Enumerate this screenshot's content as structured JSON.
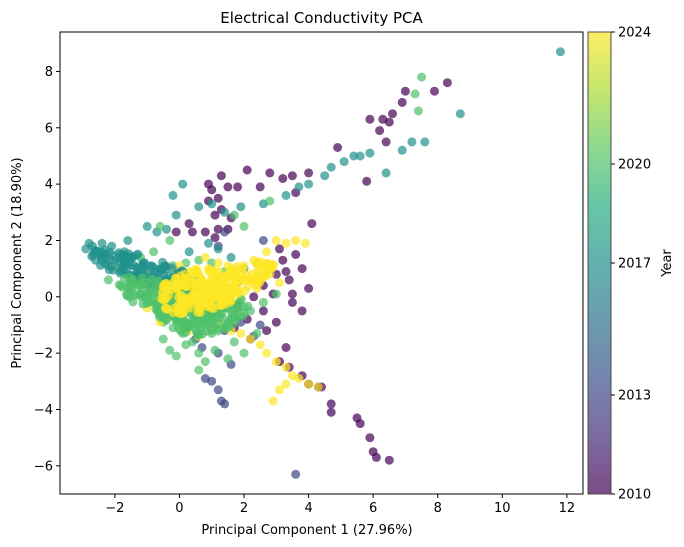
{
  "chart_data": {
    "type": "scatter",
    "title": "Electrical Conductivity PCA",
    "xlabel": "Principal Component 1 (27.96%)",
    "ylabel": "Principal Component 2 (18.90%)",
    "xlim": [
      -3.7,
      12.5
    ],
    "ylim": [
      -7.0,
      9.4
    ],
    "xticks": [
      -2,
      0,
      2,
      4,
      6,
      8,
      10,
      12
    ],
    "yticks": [
      -6,
      -4,
      -2,
      0,
      2,
      4,
      6,
      8
    ],
    "grid": false,
    "colorbar": {
      "label": "Year",
      "ticks": [
        2010,
        2013,
        2017,
        2020,
        2024
      ],
      "range": [
        2010,
        2024
      ],
      "colormap": "viridis"
    },
    "series": [
      {
        "year": 2010,
        "points": [
          [
            8.3,
            7.6
          ],
          [
            7.9,
            7.3
          ],
          [
            7.0,
            7.3
          ],
          [
            6.9,
            6.9
          ],
          [
            6.6,
            6.5
          ],
          [
            6.3,
            6.3
          ],
          [
            6.5,
            6.2
          ],
          [
            6.2,
            5.9
          ],
          [
            6.4,
            5.5
          ],
          [
            5.9,
            6.3
          ],
          [
            4.9,
            5.3
          ],
          [
            5.8,
            4.1
          ],
          [
            4.0,
            4.4
          ],
          [
            3.6,
            3.7
          ],
          [
            3.5,
            4.3
          ],
          [
            3.2,
            4.2
          ],
          [
            2.8,
            4.4
          ],
          [
            2.5,
            3.9
          ],
          [
            2.1,
            4.5
          ],
          [
            1.8,
            3.9
          ],
          [
            1.3,
            4.3
          ],
          [
            0.9,
            4.0
          ],
          [
            1.0,
            3.8
          ],
          [
            1.5,
            3.9
          ],
          [
            1.2,
            3.5
          ],
          [
            0.9,
            3.4
          ],
          [
            1.3,
            3.1
          ],
          [
            1.1,
            2.9
          ],
          [
            1.6,
            2.8
          ],
          [
            1.2,
            2.4
          ],
          [
            1.1,
            2.1
          ],
          [
            0.8,
            2.3
          ],
          [
            1.5,
            2.4
          ],
          [
            0.3,
            2.6
          ],
          [
            -0.1,
            2.3
          ],
          [
            0.4,
            2.3
          ],
          [
            4.1,
            2.6
          ],
          [
            3.1,
            1.7
          ],
          [
            3.6,
            1.5
          ],
          [
            3.3,
            0.9
          ],
          [
            3.8,
            1.0
          ],
          [
            3.0,
            0.8
          ],
          [
            2.8,
            1.1
          ],
          [
            3.4,
            0.6
          ],
          [
            2.4,
            1.2
          ],
          [
            2.6,
            0.4
          ],
          [
            2.9,
            0.1
          ],
          [
            3.5,
            -0.2
          ],
          [
            3.8,
            -0.5
          ],
          [
            2.3,
            0.0
          ],
          [
            2.6,
            -0.5
          ],
          [
            3.0,
            -0.9
          ],
          [
            2.7,
            -1.2
          ],
          [
            3.3,
            -1.8
          ],
          [
            3.1,
            -2.3
          ],
          [
            3.4,
            -2.5
          ],
          [
            3.8,
            -2.8
          ],
          [
            4.0,
            -3.1
          ],
          [
            4.4,
            -3.2
          ],
          [
            4.7,
            -3.8
          ],
          [
            4.7,
            -4.1
          ],
          [
            5.5,
            -4.3
          ],
          [
            5.6,
            -4.5
          ],
          [
            5.9,
            -5.0
          ],
          [
            6.0,
            -5.5
          ],
          [
            6.1,
            -5.7
          ],
          [
            6.5,
            -5.8
          ],
          [
            4.3,
            -3.2
          ],
          [
            2.1,
            -0.8
          ],
          [
            1.8,
            -0.3
          ],
          [
            1.5,
            0.3
          ],
          [
            1.2,
            0.1
          ],
          [
            0.9,
            0.4
          ],
          [
            1.7,
            -1.1
          ],
          [
            2.2,
            -1.5
          ],
          [
            3.5,
            0.1
          ],
          [
            4.0,
            0.3
          ],
          [
            3.2,
            1.3
          ]
        ]
      },
      {
        "year": 2013,
        "points": [
          [
            1.3,
            -3.7
          ],
          [
            1.4,
            -3.8
          ],
          [
            1.0,
            -3.0
          ],
          [
            0.8,
            -2.9
          ],
          [
            1.2,
            -3.3
          ],
          [
            3.6,
            -6.3
          ],
          [
            1.6,
            -2.4
          ],
          [
            1.2,
            -2.0
          ],
          [
            0.7,
            -1.8
          ],
          [
            0.5,
            -1.5
          ],
          [
            1.4,
            -1.2
          ],
          [
            2.3,
            -1.4
          ],
          [
            2.5,
            -1.0
          ],
          [
            1.0,
            -0.5
          ],
          [
            1.9,
            -0.9
          ],
          [
            2.6,
            2.0
          ],
          [
            1.2,
            1.8
          ],
          [
            1.4,
            2.3
          ]
        ]
      },
      {
        "year": 2017,
        "points": [
          [
            11.8,
            8.7
          ],
          [
            8.7,
            6.5
          ],
          [
            7.6,
            5.5
          ],
          [
            7.2,
            5.5
          ],
          [
            6.9,
            5.2
          ],
          [
            6.4,
            4.4
          ],
          [
            5.9,
            5.1
          ],
          [
            5.6,
            5.0
          ],
          [
            5.4,
            5.0
          ],
          [
            5.1,
            4.8
          ],
          [
            4.7,
            4.6
          ],
          [
            4.5,
            4.3
          ],
          [
            4.0,
            4.0
          ],
          [
            3.7,
            3.9
          ],
          [
            3.3,
            3.6
          ],
          [
            2.6,
            3.3
          ],
          [
            1.9,
            3.2
          ],
          [
            1.4,
            3.0
          ],
          [
            1.0,
            3.3
          ],
          [
            0.6,
            3.2
          ],
          [
            0.1,
            4.0
          ],
          [
            -0.2,
            3.6
          ],
          [
            -0.1,
            2.9
          ],
          [
            -0.4,
            2.4
          ],
          [
            -0.7,
            2.3
          ],
          [
            -1.0,
            2.5
          ],
          [
            -1.6,
            2.0
          ],
          [
            -2.1,
            1.8
          ],
          [
            -2.4,
            1.9
          ],
          [
            -2.7,
            1.8
          ],
          [
            -2.9,
            1.7
          ],
          [
            -2.8,
            1.9
          ],
          [
            -2.6,
            1.6
          ],
          [
            -2.3,
            1.5
          ],
          [
            -2.0,
            1.3
          ],
          [
            -1.7,
            1.2
          ],
          [
            -1.4,
            1.1
          ],
          [
            -1.1,
            1.0
          ],
          [
            -0.8,
            0.9
          ],
          [
            -0.5,
            0.8
          ],
          [
            -0.2,
            0.7
          ],
          [
            0.1,
            0.6
          ],
          [
            0.4,
            0.5
          ],
          [
            0.7,
            0.4
          ],
          [
            1.0,
            0.3
          ],
          [
            -2.6,
            1.3
          ],
          [
            -2.2,
            1.1
          ],
          [
            -1.8,
            0.9
          ],
          [
            -1.5,
            0.7
          ],
          [
            -1.2,
            0.5
          ],
          [
            -0.9,
            0.3
          ],
          [
            -0.6,
            0.1
          ],
          [
            -0.3,
            -0.1
          ],
          [
            0.0,
            -0.3
          ],
          [
            0.3,
            -0.5
          ],
          [
            1.2,
            1.7
          ],
          [
            1.6,
            1.4
          ],
          [
            2.0,
            1.0
          ],
          [
            0.9,
            1.9
          ],
          [
            0.3,
            1.6
          ]
        ]
      },
      {
        "year": 2020,
        "points": [
          [
            7.4,
            6.6
          ],
          [
            7.3,
            7.2
          ],
          [
            7.5,
            7.8
          ],
          [
            2.8,
            3.4
          ],
          [
            2.0,
            2.5
          ],
          [
            1.7,
            2.9
          ],
          [
            -0.6,
            2.5
          ],
          [
            -0.3,
            2.0
          ],
          [
            -0.8,
            1.6
          ],
          [
            -1.2,
            1.4
          ],
          [
            -1.9,
            1.0
          ],
          [
            -2.2,
            0.6
          ],
          [
            -1.8,
            0.4
          ],
          [
            -1.5,
            0.2
          ],
          [
            -1.2,
            0.0
          ],
          [
            -0.9,
            -0.2
          ],
          [
            -0.6,
            -0.4
          ],
          [
            -0.3,
            -0.6
          ],
          [
            0.0,
            -0.8
          ],
          [
            0.3,
            -1.0
          ],
          [
            0.1,
            -1.3
          ],
          [
            -0.2,
            -1.1
          ],
          [
            -0.5,
            -0.9
          ],
          [
            0.4,
            -1.6
          ],
          [
            0.6,
            -2.0
          ],
          [
            0.8,
            -2.3
          ],
          [
            0.6,
            -2.6
          ],
          [
            1.1,
            -1.9
          ],
          [
            1.5,
            -2.2
          ],
          [
            2.0,
            -2.0
          ],
          [
            1.0,
            -1.3
          ],
          [
            1.5,
            -1.0
          ],
          [
            2.2,
            -0.5
          ],
          [
            2.6,
            -0.2
          ],
          [
            3.0,
            0.1
          ],
          [
            1.8,
            0.5
          ],
          [
            1.4,
            0.9
          ],
          [
            1.0,
            1.2
          ],
          [
            0.6,
            1.3
          ],
          [
            0.2,
            1.2
          ],
          [
            -0.2,
            1.1
          ],
          [
            -1.0,
            0.8
          ],
          [
            -1.3,
            0.6
          ],
          [
            -0.7,
            0.5
          ],
          [
            -0.4,
            0.3
          ],
          [
            -0.1,
            0.1
          ],
          [
            0.2,
            -0.1
          ],
          [
            0.5,
            -0.3
          ],
          [
            0.8,
            -0.5
          ],
          [
            1.1,
            -0.7
          ],
          [
            -0.5,
            -1.5
          ],
          [
            -0.3,
            -1.9
          ],
          [
            -0.1,
            -2.1
          ],
          [
            0.2,
            -1.7
          ],
          [
            2.4,
            -1.3
          ],
          [
            1.7,
            -1.6
          ]
        ]
      },
      {
        "year": 2024,
        "points": [
          [
            3.6,
            2.0
          ],
          [
            3.3,
            1.9
          ],
          [
            3.0,
            2.0
          ],
          [
            2.7,
            1.6
          ],
          [
            2.3,
            1.3
          ],
          [
            2.0,
            1.1
          ],
          [
            1.7,
            0.9
          ],
          [
            1.4,
            0.7
          ],
          [
            1.1,
            0.5
          ],
          [
            0.8,
            0.4
          ],
          [
            0.5,
            0.2
          ],
          [
            0.2,
            0.0
          ],
          [
            -0.1,
            -0.1
          ],
          [
            -0.4,
            -0.2
          ],
          [
            -0.7,
            -0.3
          ],
          [
            -1.0,
            -0.4
          ],
          [
            0.0,
            1.1
          ],
          [
            0.3,
            0.9
          ],
          [
            0.6,
            0.8
          ],
          [
            0.9,
            1.0
          ],
          [
            1.2,
            1.2
          ],
          [
            1.5,
            1.1
          ],
          [
            0.1,
            0.6
          ],
          [
            -0.2,
            0.4
          ],
          [
            -0.5,
            0.5
          ],
          [
            0.4,
            -0.4
          ],
          [
            0.7,
            -0.6
          ],
          [
            1.0,
            -0.8
          ],
          [
            1.3,
            -1.0
          ],
          [
            1.6,
            -1.2
          ],
          [
            1.9,
            -1.3
          ],
          [
            2.2,
            -1.5
          ],
          [
            2.5,
            -1.7
          ],
          [
            2.7,
            -2.0
          ],
          [
            3.0,
            -2.3
          ],
          [
            3.3,
            -2.5
          ],
          [
            3.5,
            -2.8
          ],
          [
            3.3,
            -3.1
          ],
          [
            3.1,
            -3.3
          ],
          [
            2.9,
            -3.7
          ],
          [
            3.7,
            -2.9
          ],
          [
            4.0,
            -3.1
          ],
          [
            4.3,
            -3.2
          ],
          [
            0.0,
            -1.0
          ],
          [
            0.3,
            -1.2
          ],
          [
            0.6,
            -1.4
          ],
          [
            -0.3,
            -0.7
          ],
          [
            -0.6,
            -0.9
          ],
          [
            2.8,
            0.8
          ],
          [
            3.1,
            0.5
          ],
          [
            1.9,
            0.0
          ],
          [
            1.6,
            -0.2
          ],
          [
            1.3,
            -0.4
          ],
          [
            0.5,
            -0.1
          ],
          [
            -0.1,
            0.9
          ],
          [
            0.8,
            1.4
          ],
          [
            1.8,
            0.6
          ],
          [
            2.4,
            0.3
          ],
          [
            3.9,
            1.9
          ]
        ]
      }
    ]
  }
}
